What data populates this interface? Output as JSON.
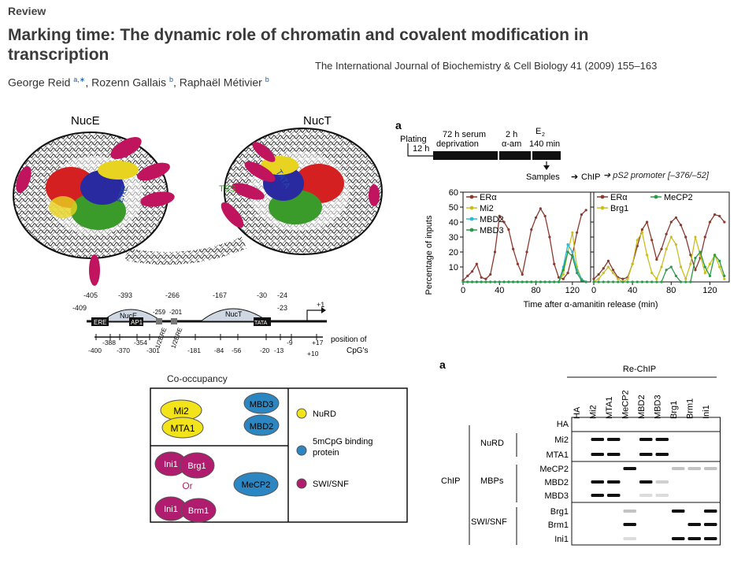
{
  "header": {
    "section": "Review",
    "title": "Marking time: The dynamic role of chromatin and covalent modification in transcription",
    "journal": "The International Journal of Biochemistry & Cell Biology 41 (2009) 155–163",
    "authors": [
      {
        "name": "George Reid",
        "sup": "a,∗"
      },
      {
        "name": "Rozenn Gallais",
        "sup": "b"
      },
      {
        "name": "Raphaël Métivier",
        "sup": "b"
      }
    ]
  },
  "nucleosome_figure": {
    "labels": [
      "NucE",
      "NucT"
    ],
    "annotations": [
      "ERE",
      "TATA",
      "TSS"
    ]
  },
  "promoter_map": {
    "top_positions": [
      "-405",
      "-393",
      "-266",
      "-167",
      "-30",
      "-24",
      "-409",
      "-23",
      "+1"
    ],
    "elements": [
      "ERE",
      "NucE",
      "AP1",
      "NucT",
      "TATA"
    ],
    "half_eres": [
      "1/2ERE",
      "1/2ERE"
    ],
    "half_ere_positions": [
      "-259",
      "-201"
    ],
    "bottom_positions": [
      "-400",
      "-388",
      "-370",
      "-354",
      "-301",
      "-181",
      "-84",
      "-56",
      "-20",
      "-13",
      "-9",
      "+17",
      "+10"
    ],
    "cpg_label": "position of CpG's"
  },
  "co_occupancy": {
    "title": "Co-occupancy",
    "pairs": [
      {
        "a": "Mi2",
        "b": "MTA1",
        "group": "nurd"
      },
      {
        "a": "MBD3",
        "b": "MBD2",
        "group": "mbp"
      },
      {
        "a": "Ini1",
        "b": "Brg1",
        "group": "swi"
      },
      {
        "a": "Ini1",
        "b": "Brm1",
        "group": "swi"
      }
    ],
    "or_text": "Or",
    "single": "MeCP2",
    "legend": [
      {
        "label": "NuRD",
        "color": "#f2e31b"
      },
      {
        "label": "5mCpG binding protein",
        "color": "#2c86c2"
      },
      {
        "label": "SWI/SNF",
        "color": "#b01c6e"
      }
    ],
    "colors": {
      "nurd": "#f2e31b",
      "mbp": "#2c86c2",
      "swi": "#b01c6e"
    }
  },
  "timeline": {
    "panel": "a",
    "labels": {
      "plating": "Plating",
      "t12h": "12 h",
      "serum": "72 h serum",
      "deprivation": "deprivation",
      "t2h": "2 h",
      "aam": "α-am",
      "e2": "E",
      "e2_sub": "2",
      "t140": "140 min"
    },
    "flow": [
      "Samples",
      "ChIP",
      "pS2 promoter [–376/–52]"
    ]
  },
  "chart_data": {
    "type": "line",
    "xlabel": "Time after α-amanitin release (min)",
    "ylabel": "Percentage of inputs",
    "xticks": [
      0,
      40,
      80,
      120
    ],
    "yticks": [
      10,
      20,
      30,
      40,
      50,
      60
    ],
    "xlim": [
      0,
      140
    ],
    "ylim": [
      0,
      60
    ],
    "x": [
      0,
      5,
      10,
      15,
      20,
      25,
      30,
      35,
      40,
      45,
      50,
      55,
      60,
      65,
      70,
      75,
      80,
      85,
      90,
      95,
      100,
      105,
      110,
      115,
      120,
      125,
      130,
      135
    ],
    "panels": [
      {
        "series": [
          {
            "name": "ERα",
            "color": "#8b3a2f",
            "values": [
              1,
              4,
              7,
              12,
              3,
              2,
              5,
              20,
              44,
              40,
              35,
              22,
              12,
              5,
              20,
              35,
              43,
              49,
              44,
              30,
              12,
              3,
              2,
              6,
              18,
              33,
              45,
              48
            ]
          },
          {
            "name": "Mi2",
            "color": "#c8c020",
            "values": [
              0,
              0,
              0,
              0,
              0,
              0,
              0,
              0,
              0,
              0,
              0,
              0,
              0,
              0,
              0,
              0,
              0,
              0,
              0,
              0,
              0,
              0,
              5,
              20,
              33,
              10,
              2,
              0
            ]
          },
          {
            "name": "MBD2",
            "color": "#2bb8d8",
            "values": [
              0,
              0,
              0,
              0,
              0,
              0,
              0,
              0,
              0,
              0,
              0,
              0,
              0,
              0,
              0,
              0,
              0,
              0,
              0,
              0,
              0,
              0,
              10,
              25,
              20,
              8,
              2,
              0
            ]
          },
          {
            "name": "MBD3",
            "color": "#2a9a48",
            "values": [
              0,
              0,
              0,
              0,
              0,
              0,
              0,
              0,
              0,
              0,
              0,
              0,
              0,
              0,
              0,
              0,
              0,
              0,
              0,
              0,
              0,
              0,
              8,
              20,
              17,
              6,
              1,
              0
            ]
          }
        ]
      },
      {
        "series": [
          {
            "name": "ERα",
            "color": "#8b3a2f",
            "values": [
              2,
              5,
              9,
              14,
              8,
              3,
              2,
              3,
              12,
              24,
              35,
              40,
              28,
              15,
              22,
              32,
              40,
              43,
              38,
              30,
              18,
              8,
              16,
              30,
              40,
              45,
              44,
              40
            ]
          },
          {
            "name": "Brg1",
            "color": "#c8c020",
            "values": [
              0,
              2,
              6,
              10,
              6,
              2,
              0,
              2,
              12,
              28,
              33,
              18,
              6,
              2,
              10,
              22,
              30,
              25,
              10,
              2,
              12,
              30,
              18,
              6,
              12,
              18,
              10,
              2
            ]
          },
          {
            "name": "MeCP2",
            "color": "#2a9a48",
            "values": [
              0,
              0,
              0,
              0,
              0,
              0,
              0,
              0,
              0,
              0,
              0,
              0,
              0,
              0,
              0,
              8,
              10,
              4,
              0,
              0,
              0,
              16,
              20,
              10,
              4,
              18,
              14,
              4
            ]
          }
        ]
      }
    ]
  },
  "rechip": {
    "panel": "a",
    "header": "Re-ChIP",
    "columns": [
      "HA",
      "Mi2",
      "MTA1",
      "MeCP2",
      "MBD2",
      "MBD3",
      "Brg1",
      "Brm1",
      "Ini1"
    ],
    "chip_label": "ChIP",
    "groups": [
      {
        "name": "",
        "rows": [
          "HA"
        ]
      },
      {
        "name": "NuRD",
        "rows": [
          "Mi2",
          "MTA1"
        ]
      },
      {
        "name": "MBPs",
        "rows": [
          "MeCP2",
          "MBD2",
          "MBD3"
        ]
      },
      {
        "name": "SWI/SNF",
        "rows": [
          "Brg1",
          "Brm1",
          "Ini1"
        ]
      }
    ],
    "bands": {
      "Mi2": [
        0,
        1,
        1,
        0,
        1,
        1,
        0,
        0,
        0
      ],
      "MTA1": [
        0,
        1,
        1,
        0,
        1,
        1,
        0,
        0,
        0
      ],
      "MeCP2": [
        0,
        0,
        0,
        1,
        0,
        0,
        0.25,
        0.25,
        0.25
      ],
      "MBD2": [
        0,
        1,
        1,
        0,
        1,
        0.2,
        0,
        0,
        0
      ],
      "MBD3": [
        0,
        1,
        1,
        0,
        0.15,
        0.15,
        0,
        0,
        0
      ],
      "Brg1": [
        0,
        0,
        0,
        0.25,
        0,
        0,
        1,
        0,
        1
      ],
      "Brm1": [
        0,
        0,
        0,
        1,
        0,
        0,
        0,
        1,
        1
      ],
      "Ini1": [
        0,
        0,
        0,
        0.1,
        0,
        0,
        1,
        1,
        1
      ]
    }
  }
}
